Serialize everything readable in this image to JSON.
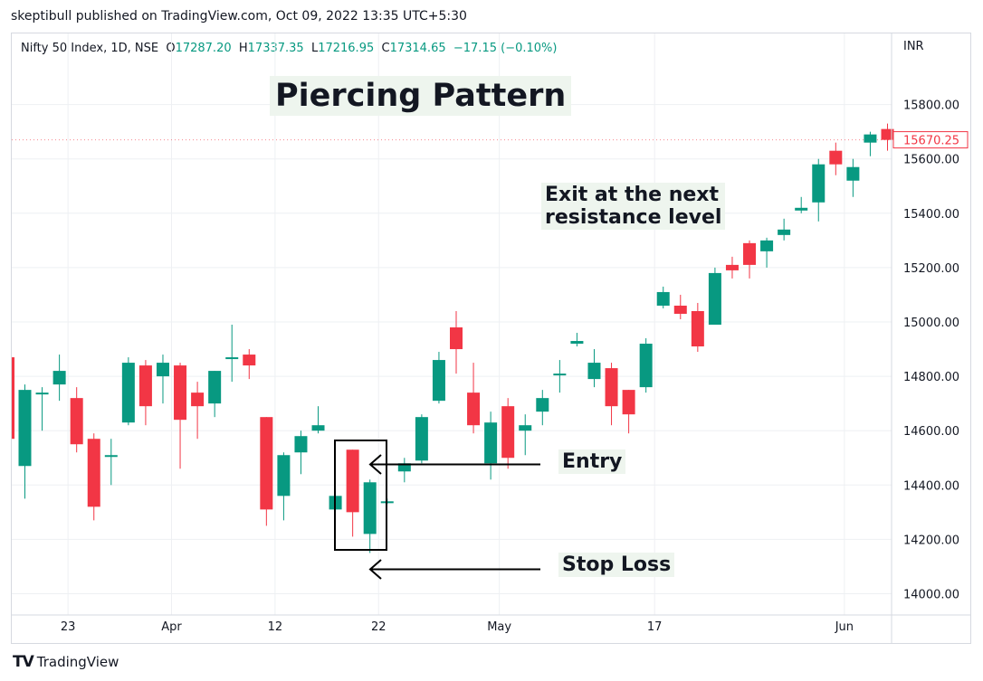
{
  "header": {
    "published": "skeptibull published on TradingView.com, Oct 09, 2022 13:35 UTC+5:30"
  },
  "legend": {
    "symbol": "Nifty 50 Index, 1D, NSE",
    "o_label": "O",
    "o_value": "17287.20",
    "h_label": "H",
    "h_value": "17337.35",
    "l_label": "L",
    "l_value": "17216.95",
    "c_label": "C",
    "c_value": "17314.65",
    "change": "−17.15 (−0.10%)"
  },
  "currency": "INR",
  "annotations": {
    "title": "Piercing Pattern",
    "exit_line1": "Exit at the next",
    "exit_line2": "resistance level",
    "entry": "Entry",
    "stop_loss": "Stop Loss"
  },
  "footer": {
    "logo": "TV",
    "brand": "TradingView"
  },
  "colors": {
    "up": "#089981",
    "down": "#f23645",
    "grid": "#eef0f3",
    "last_price": "#f23645"
  },
  "chart_data": {
    "type": "candlestick",
    "ylim": [
      13980,
      15850
    ],
    "y_ticks": [
      {
        "value": 15800,
        "label": "15800.00"
      },
      {
        "value": 15600,
        "label": "15600.00"
      },
      {
        "value": 15400,
        "label": "15400.00"
      },
      {
        "value": 15200,
        "label": "15200.00"
      },
      {
        "value": 15000,
        "label": "15000.00"
      },
      {
        "value": 14800,
        "label": "14800.00"
      },
      {
        "value": 14600,
        "label": "14600.00"
      },
      {
        "value": 14400,
        "label": "14400.00"
      },
      {
        "value": 14200,
        "label": "14200.00"
      },
      {
        "value": 14000,
        "label": "14000.00"
      }
    ],
    "x_ticks": [
      {
        "index": 2.5,
        "label": "23"
      },
      {
        "index": 8.5,
        "label": "Apr"
      },
      {
        "index": 14.5,
        "label": "12"
      },
      {
        "index": 20.5,
        "label": "22"
      },
      {
        "index": 27.5,
        "label": "May"
      },
      {
        "index": 36.5,
        "label": "17"
      },
      {
        "index": 47.5,
        "label": "Jun"
      }
    ],
    "last_price": {
      "value": 15670.25,
      "label": "15670.25"
    },
    "candles": [
      {
        "o": 14470,
        "h": 14770,
        "l": 14350,
        "c": 14750
      },
      {
        "o": 14740,
        "h": 14760,
        "l": 14600,
        "c": 14740
      },
      {
        "o": 14770,
        "h": 14880,
        "l": 14710,
        "c": 14820
      },
      {
        "o": 14720,
        "h": 14760,
        "l": 14520,
        "c": 14550
      },
      {
        "o": 14570,
        "h": 14590,
        "l": 14270,
        "c": 14320
      },
      {
        "o": 14510,
        "h": 14570,
        "l": 14400,
        "c": 14510
      },
      {
        "o": 14630,
        "h": 14870,
        "l": 14620,
        "c": 14850
      },
      {
        "o": 14840,
        "h": 14860,
        "l": 14620,
        "c": 14690
      },
      {
        "o": 14800,
        "h": 14880,
        "l": 14700,
        "c": 14850
      },
      {
        "o": 14840,
        "h": 14850,
        "l": 14460,
        "c": 14640
      },
      {
        "o": 14740,
        "h": 14780,
        "l": 14570,
        "c": 14690
      },
      {
        "o": 14700,
        "h": 14820,
        "l": 14650,
        "c": 14820
      },
      {
        "o": 14870,
        "h": 14990,
        "l": 14780,
        "c": 14870
      },
      {
        "o": 14880,
        "h": 14900,
        "l": 14790,
        "c": 14840
      },
      {
        "o": 14650,
        "h": 14650,
        "l": 14250,
        "c": 14310
      },
      {
        "o": 14360,
        "h": 14520,
        "l": 14270,
        "c": 14510
      },
      {
        "o": 14520,
        "h": 14600,
        "l": 14440,
        "c": 14580
      },
      {
        "o": 14600,
        "h": 14690,
        "l": 14590,
        "c": 14620
      },
      {
        "o": 14310,
        "h": 14380,
        "l": 14300,
        "c": 14360
      },
      {
        "o": 14530,
        "h": 14530,
        "l": 14210,
        "c": 14300
      },
      {
        "o": 14220,
        "h": 14420,
        "l": 14150,
        "c": 14410
      },
      {
        "o": 14340,
        "h": 14350,
        "l": 14330,
        "c": 14340
      },
      {
        "o": 14450,
        "h": 14500,
        "l": 14410,
        "c": 14480
      },
      {
        "o": 14490,
        "h": 14660,
        "l": 14480,
        "c": 14650
      },
      {
        "o": 14710,
        "h": 14890,
        "l": 14700,
        "c": 14860
      },
      {
        "o": 14980,
        "h": 15040,
        "l": 14810,
        "c": 14900
      },
      {
        "o": 14740,
        "h": 14850,
        "l": 14590,
        "c": 14620
      },
      {
        "o": 14480,
        "h": 14670,
        "l": 14420,
        "c": 14630
      },
      {
        "o": 14690,
        "h": 14720,
        "l": 14460,
        "c": 14500
      },
      {
        "o": 14600,
        "h": 14660,
        "l": 14510,
        "c": 14620
      },
      {
        "o": 14670,
        "h": 14750,
        "l": 14620,
        "c": 14720
      },
      {
        "o": 14810,
        "h": 14860,
        "l": 14740,
        "c": 14810
      },
      {
        "o": 14920,
        "h": 14960,
        "l": 14910,
        "c": 14930
      },
      {
        "o": 14790,
        "h": 14900,
        "l": 14760,
        "c": 14850
      },
      {
        "o": 14830,
        "h": 14850,
        "l": 14620,
        "c": 14690
      },
      {
        "o": 14750,
        "h": 14750,
        "l": 14590,
        "c": 14660
      },
      {
        "o": 14760,
        "h": 14940,
        "l": 14740,
        "c": 14920
      },
      {
        "o": 15060,
        "h": 15130,
        "l": 15050,
        "c": 15110
      },
      {
        "o": 15060,
        "h": 15100,
        "l": 15010,
        "c": 15030
      },
      {
        "o": 15040,
        "h": 15070,
        "l": 14890,
        "c": 14910
      },
      {
        "o": 14990,
        "h": 15200,
        "l": 14990,
        "c": 15180
      },
      {
        "o": 15210,
        "h": 15240,
        "l": 15160,
        "c": 15190
      },
      {
        "o": 15290,
        "h": 15300,
        "l": 15160,
        "c": 15210
      },
      {
        "o": 15260,
        "h": 15310,
        "l": 15200,
        "c": 15300
      },
      {
        "o": 15320,
        "h": 15380,
        "l": 15300,
        "c": 15340
      },
      {
        "o": 15410,
        "h": 15460,
        "l": 15400,
        "c": 15420
      },
      {
        "o": 15440,
        "h": 15600,
        "l": 15370,
        "c": 15580
      },
      {
        "o": 15630,
        "h": 15660,
        "l": 15540,
        "c": 15580
      },
      {
        "o": 15520,
        "h": 15600,
        "l": 15460,
        "c": 15570
      },
      {
        "o": 15660,
        "h": 15700,
        "l": 15610,
        "c": 15690
      },
      {
        "o": 15710,
        "h": 15730,
        "l": 15630,
        "c": 15670
      }
    ]
  }
}
